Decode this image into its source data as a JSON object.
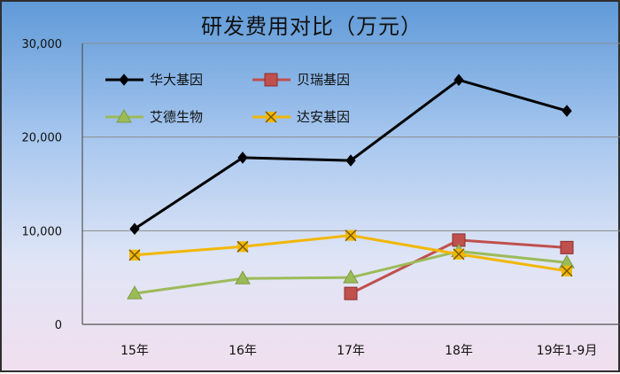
{
  "chart_data": {
    "type": "line",
    "title": "研发费用对比（万元）",
    "categories": [
      "15年",
      "16年",
      "17年",
      "18年",
      "19年1-9月"
    ],
    "ylim": [
      0,
      30000
    ],
    "yticks": [
      "30,000",
      "20,000",
      "10,000",
      "0"
    ],
    "grid": true,
    "legend_position": "top-left",
    "series": [
      {
        "name": "华大基因",
        "values": [
          10200,
          17800,
          17500,
          26100,
          22800
        ],
        "color": "#000000",
        "marker": "diamond"
      },
      {
        "name": "贝瑞基因",
        "values": [
          null,
          null,
          3300,
          9000,
          8200
        ],
        "color": "#c0504d",
        "marker": "square"
      },
      {
        "name": "艾德生物",
        "values": [
          3300,
          4900,
          5000,
          7800,
          6600
        ],
        "color": "#9bbb59",
        "marker": "triangle"
      },
      {
        "name": "达安基因",
        "values": [
          7400,
          8300,
          9500,
          7500,
          5700
        ],
        "color": "#f2b705",
        "marker": "x"
      }
    ]
  }
}
